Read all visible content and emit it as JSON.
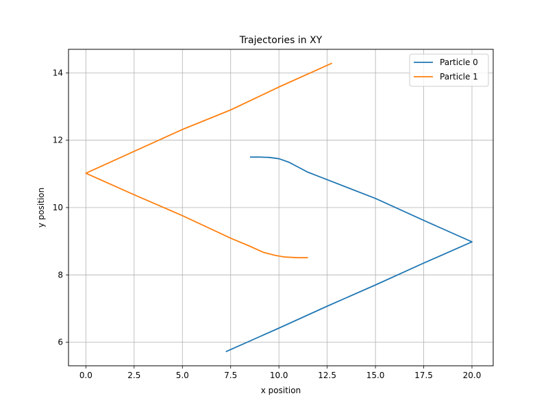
{
  "chart_data": {
    "type": "line",
    "title": "Trajectories in XY",
    "xlabel": "x position",
    "ylabel": "y position",
    "xlim": [
      -0.9,
      21.1
    ],
    "ylim": [
      5.3,
      14.7
    ],
    "xticks": [
      0.0,
      2.5,
      5.0,
      7.5,
      10.0,
      12.5,
      15.0,
      17.5,
      20.0
    ],
    "xtick_labels": [
      "0.0",
      "2.5",
      "5.0",
      "7.5",
      "10.0",
      "12.5",
      "15.0",
      "17.5",
      "20.0"
    ],
    "yticks": [
      6,
      8,
      10,
      12,
      14
    ],
    "ytick_labels": [
      "6",
      "8",
      "10",
      "12",
      "14"
    ],
    "grid": true,
    "legend_position": "top-right",
    "series": [
      {
        "name": "Particle 0",
        "color": "#1f77b4",
        "points": [
          [
            8.5,
            11.5
          ],
          [
            9.0,
            11.5
          ],
          [
            9.5,
            11.49
          ],
          [
            10.0,
            11.45
          ],
          [
            10.5,
            11.35
          ],
          [
            11.0,
            11.2
          ],
          [
            11.5,
            11.05
          ],
          [
            12.0,
            10.94
          ],
          [
            15.0,
            10.27
          ],
          [
            17.5,
            9.62
          ],
          [
            20.0,
            8.98
          ],
          [
            17.5,
            8.35
          ],
          [
            15.0,
            7.7
          ],
          [
            12.5,
            7.07
          ],
          [
            10.0,
            6.42
          ],
          [
            7.25,
            5.72
          ]
        ]
      },
      {
        "name": "Particle 1",
        "color": "#ff7f0e",
        "points": [
          [
            12.75,
            14.29
          ],
          [
            10.0,
            13.58
          ],
          [
            7.5,
            12.9
          ],
          [
            5.0,
            12.32
          ],
          [
            2.5,
            11.67
          ],
          [
            0.0,
            11.02
          ],
          [
            2.5,
            10.38
          ],
          [
            5.0,
            9.76
          ],
          [
            7.5,
            9.09
          ],
          [
            8.5,
            8.85
          ],
          [
            9.2,
            8.67
          ],
          [
            9.8,
            8.58
          ],
          [
            10.3,
            8.53
          ],
          [
            11.0,
            8.51
          ],
          [
            11.5,
            8.51
          ]
        ]
      }
    ]
  }
}
